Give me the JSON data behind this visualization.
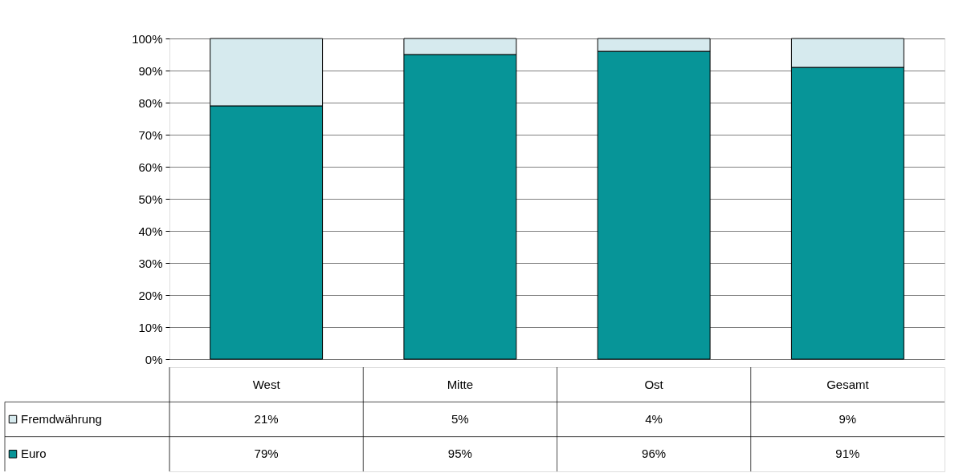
{
  "chart_data": {
    "type": "bar",
    "stacked": true,
    "categories": [
      "West",
      "Mitte",
      "Ost",
      "Gesamt"
    ],
    "series": [
      {
        "name": "Euro",
        "color": "#079598",
        "values": [
          79,
          95,
          96,
          91
        ],
        "value_labels": [
          "79%",
          "95%",
          "96%",
          "91%"
        ]
      },
      {
        "name": "Fremdwährung",
        "color": "#d6eaee",
        "values": [
          21,
          5,
          4,
          9
        ],
        "value_labels": [
          "21%",
          "5%",
          "4%",
          "9%"
        ]
      }
    ],
    "ylim": [
      0,
      100
    ],
    "yticks": [
      {
        "value": 0,
        "label": "0%"
      },
      {
        "value": 10,
        "label": "10%"
      },
      {
        "value": 20,
        "label": "20%"
      },
      {
        "value": 30,
        "label": "30%"
      },
      {
        "value": 40,
        "label": "40%"
      },
      {
        "value": 50,
        "label": "50%"
      },
      {
        "value": 60,
        "label": "60%"
      },
      {
        "value": 70,
        "label": "70%"
      },
      {
        "value": 80,
        "label": "80%"
      },
      {
        "value": 90,
        "label": "90%"
      },
      {
        "value": 100,
        "label": "100%"
      }
    ],
    "grid": "y",
    "legend": "left"
  }
}
